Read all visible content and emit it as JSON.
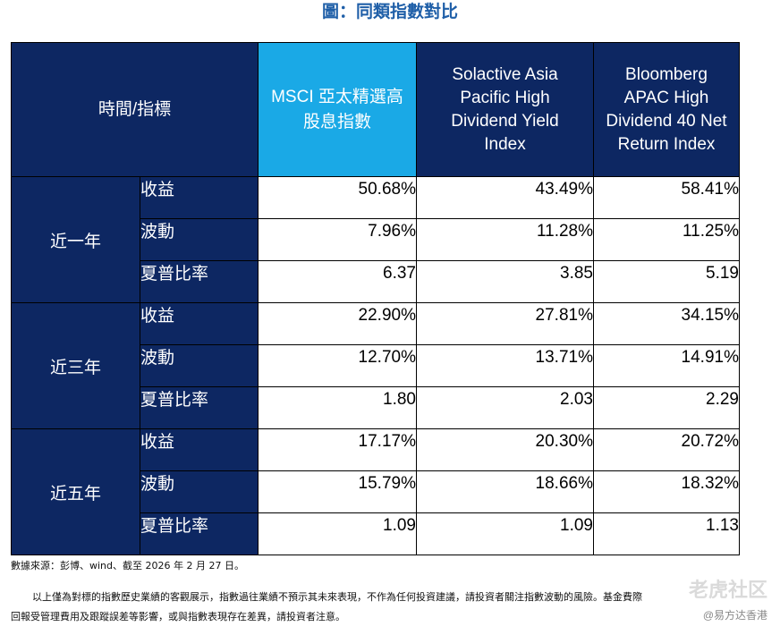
{
  "title": "圖：同類指數對比",
  "header": {
    "corner": "時間/指標",
    "columns": [
      "MSCI 亞太精選高股息指數",
      "Solactive Asia Pacific High Dividend Yield Index",
      "Bloomberg APAC High Dividend 40 Net Return Index"
    ]
  },
  "groups": [
    {
      "period": "近一年",
      "rows": [
        {
          "metric": "收益",
          "values": [
            "50.68%",
            "43.49%",
            "58.41%"
          ]
        },
        {
          "metric": "波動",
          "values": [
            "7.96%",
            "11.28%",
            "11.25%"
          ]
        },
        {
          "metric": "夏普比率",
          "values": [
            "6.37",
            "3.85",
            "5.19"
          ]
        }
      ]
    },
    {
      "period": "近三年",
      "rows": [
        {
          "metric": "收益",
          "values": [
            "22.90%",
            "27.81%",
            "34.15%"
          ]
        },
        {
          "metric": "波動",
          "values": [
            "12.70%",
            "13.71%",
            "14.91%"
          ]
        },
        {
          "metric": "夏普比率",
          "values": [
            "1.80",
            "2.03",
            "2.29"
          ]
        }
      ]
    },
    {
      "period": "近五年",
      "rows": [
        {
          "metric": "收益",
          "values": [
            "17.17%",
            "20.30%",
            "20.72%"
          ]
        },
        {
          "metric": "波動",
          "values": [
            "15.79%",
            "18.66%",
            "18.32%"
          ]
        },
        {
          "metric": "夏普比率",
          "values": [
            "1.09",
            "1.09",
            "1.13"
          ]
        }
      ]
    }
  ],
  "source_note": "數據來源：彭博、wind、截至 2026 年 2 月 27 日。",
  "disclaimer_1": "以上僅為對標的指數歷史業績的客觀展示，指數過往業績不預示其未來表現，不作為任何投資建議，請投資者關注指數波動的風險。基金費際",
  "disclaimer_2": "回報受管理費用及跟蹤誤差等影響，或與指數表現存在差異，請投資者注意。",
  "brand": "@易方达香港",
  "brand_community": "老虎社区",
  "colors": {
    "header_dark": "#0d2762",
    "header_light": "#1aa9e6",
    "title": "#1f5fa8"
  }
}
